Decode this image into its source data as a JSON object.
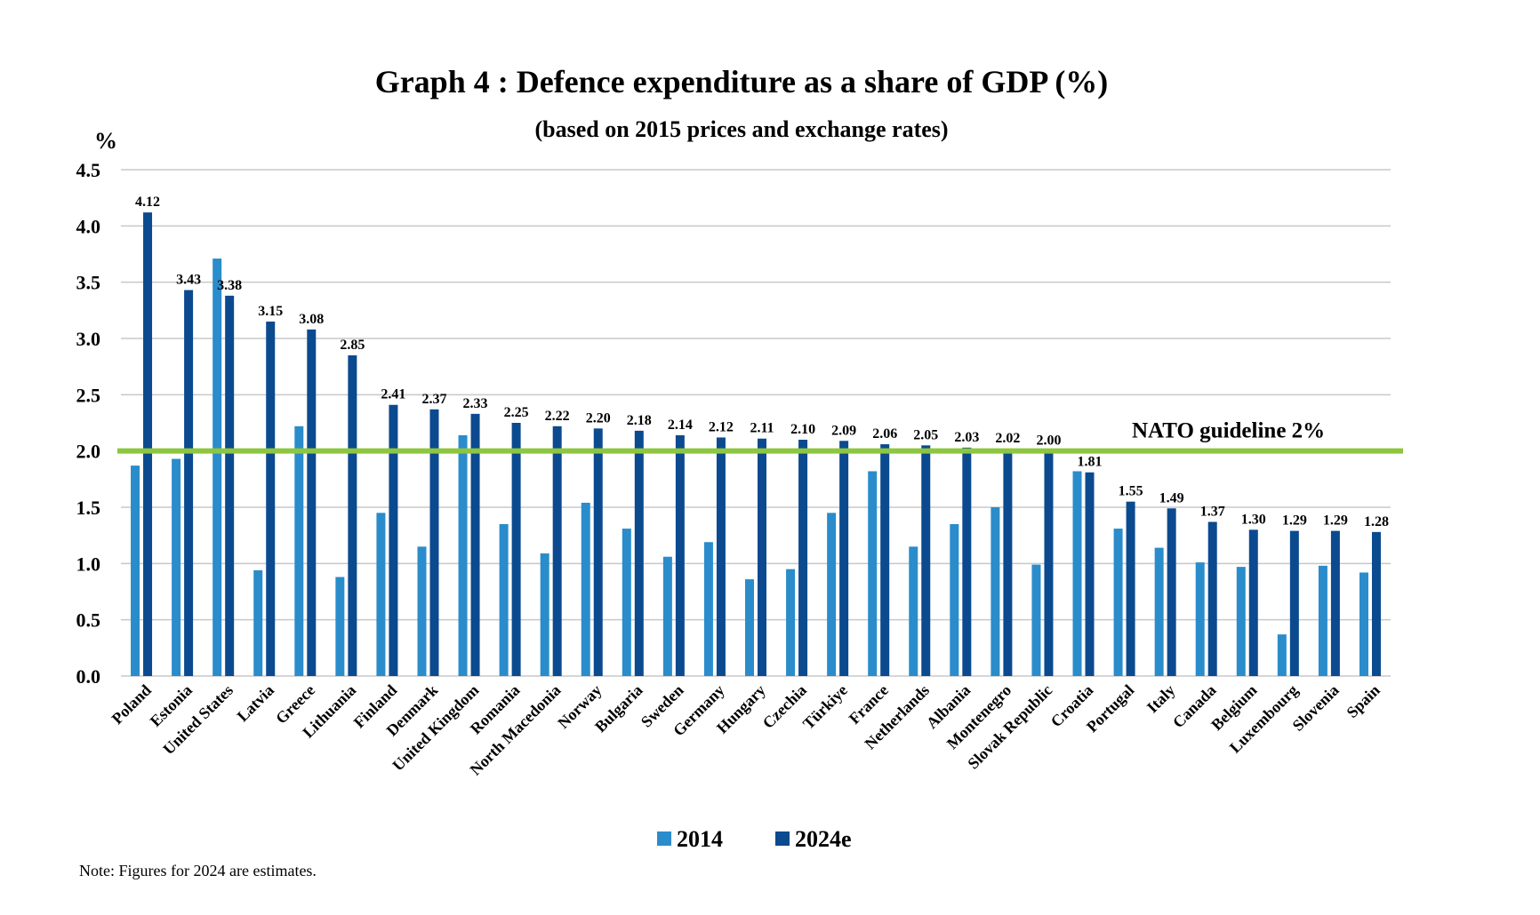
{
  "chart_data": {
    "type": "bar",
    "title": "Graph 4 : Defence expenditure as a share of GDP (%)",
    "subtitle": "(based on 2015 prices and exchange rates)",
    "ylabel": "%",
    "xlabel": "",
    "ylim": [
      0,
      4.5
    ],
    "yticks": [
      "0.0",
      "0.5",
      "1.0",
      "1.5",
      "2.0",
      "2.5",
      "3.0",
      "3.5",
      "4.0",
      "4.5"
    ],
    "grid": true,
    "legend_position": "bottom",
    "categories": [
      "Poland",
      "Estonia",
      "United States",
      "Latvia",
      "Greece",
      "Lithuania",
      "Finland",
      "Denmark",
      "United Kingdom",
      "Romania",
      "North Macedonia",
      "Norway",
      "Bulgaria",
      "Sweden",
      "Germany",
      "Hungary",
      "Czechia",
      "Türkiye",
      "France",
      "Netherlands",
      "Albania",
      "Montenegro",
      "Slovak Republic",
      "Croatia",
      "Portugal",
      "Italy",
      "Canada",
      "Belgium",
      "Luxembourg",
      "Slovenia",
      "Spain"
    ],
    "series": [
      {
        "name": "2014",
        "color": "#2a8ccb",
        "values": [
          1.87,
          1.93,
          3.71,
          0.94,
          2.22,
          0.88,
          1.45,
          1.15,
          2.14,
          1.35,
          1.09,
          1.54,
          1.31,
          1.06,
          1.19,
          0.86,
          0.95,
          1.45,
          1.82,
          1.15,
          1.35,
          1.5,
          0.99,
          1.82,
          1.31,
          1.14,
          1.01,
          0.97,
          0.37,
          0.98,
          0.92
        ]
      },
      {
        "name": "2024e",
        "color": "#0b4a8f",
        "values": [
          4.12,
          3.43,
          3.38,
          3.15,
          3.08,
          2.85,
          2.41,
          2.37,
          2.33,
          2.25,
          2.22,
          2.2,
          2.18,
          2.14,
          2.12,
          2.11,
          2.1,
          2.09,
          2.06,
          2.05,
          2.03,
          2.02,
          2.0,
          1.81,
          1.55,
          1.49,
          1.37,
          1.3,
          1.29,
          1.29,
          1.28
        ],
        "labels": [
          "4.12",
          "3.43",
          "3.38",
          "3.15",
          "3.08",
          "2.85",
          "2.41",
          "2.37",
          "2.33",
          "2.25",
          "2.22",
          "2.20",
          "2.18",
          "2.14",
          "2.12",
          "2.11",
          "2.10",
          "2.09",
          "2.06",
          "2.05",
          "2.03",
          "2.02",
          "2.00",
          "1.81",
          "1.55",
          "1.49",
          "1.37",
          "1.30",
          "1.29",
          "1.29",
          "1.28"
        ]
      }
    ],
    "reference_line": {
      "value": 2.0,
      "label": "NATO guideline 2%",
      "color": "#8dc63f"
    },
    "note": "Note: Figures for 2024 are estimates."
  }
}
